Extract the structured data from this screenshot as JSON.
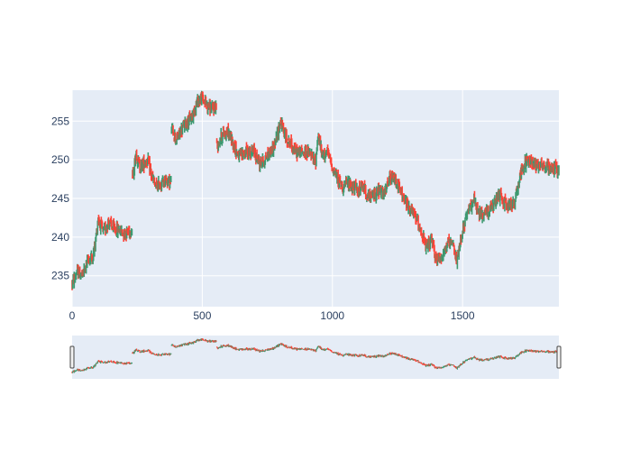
{
  "chart_data": {
    "type": "candlestick",
    "title": "",
    "xlabel": "",
    "ylabel": "",
    "xlim": [
      0,
      1870
    ],
    "ylim": [
      231,
      259
    ],
    "x_ticks": [
      0,
      500,
      1000,
      1500
    ],
    "x_tick_labels": [
      "0",
      "500",
      "1000",
      "1500"
    ],
    "y_ticks": [
      235,
      240,
      245,
      250,
      255
    ],
    "y_tick_labels": [
      "235",
      "240",
      "245",
      "250",
      "255"
    ],
    "grid": true,
    "legend": "none",
    "rangeslider": true,
    "colors": {
      "increasing": "#3D9970",
      "decreasing": "#FF4136",
      "plot_bg": "#E5ECF6",
      "grid": "#ffffff",
      "tick_text": "#2a3f5f"
    },
    "price_path": [
      [
        0,
        234.0
      ],
      [
        20,
        235.5
      ],
      [
        40,
        235.0
      ],
      [
        60,
        237.0
      ],
      [
        80,
        237.5
      ],
      [
        90,
        239.5
      ],
      [
        100,
        242.5
      ],
      [
        120,
        240.5
      ],
      [
        140,
        242.0
      ],
      [
        160,
        241.0
      ],
      [
        180,
        241.0
      ],
      [
        200,
        240.5
      ],
      [
        230,
        241.0
      ],
      [
        235,
        248.0
      ],
      [
        245,
        251.0
      ],
      [
        260,
        249.0
      ],
      [
        290,
        250.0
      ],
      [
        305,
        248.0
      ],
      [
        320,
        246.5
      ],
      [
        345,
        247.0
      ],
      [
        360,
        247.5
      ],
      [
        380,
        247.0
      ],
      [
        385,
        254.0
      ],
      [
        400,
        252.5
      ],
      [
        430,
        254.5
      ],
      [
        460,
        255.5
      ],
      [
        480,
        257.5
      ],
      [
        500,
        258.0
      ],
      [
        520,
        257.0
      ],
      [
        540,
        256.5
      ],
      [
        555,
        257.0
      ],
      [
        560,
        252.0
      ],
      [
        580,
        253.5
      ],
      [
        600,
        253.5
      ],
      [
        620,
        252.0
      ],
      [
        640,
        250.5
      ],
      [
        670,
        251.0
      ],
      [
        700,
        251.0
      ],
      [
        720,
        249.5
      ],
      [
        740,
        250.0
      ],
      [
        760,
        251.0
      ],
      [
        780,
        252.0
      ],
      [
        800,
        255.0
      ],
      [
        820,
        253.0
      ],
      [
        840,
        252.0
      ],
      [
        860,
        251.0
      ],
      [
        880,
        251.0
      ],
      [
        900,
        251.0
      ],
      [
        920,
        250.5
      ],
      [
        935,
        249.5
      ],
      [
        945,
        253.5
      ],
      [
        960,
        250.5
      ],
      [
        980,
        251.0
      ],
      [
        1000,
        249.0
      ],
      [
        1020,
        247.5
      ],
      [
        1040,
        246.5
      ],
      [
        1060,
        247.0
      ],
      [
        1080,
        246.5
      ],
      [
        1100,
        246.0
      ],
      [
        1120,
        246.5
      ],
      [
        1140,
        245.0
      ],
      [
        1160,
        245.5
      ],
      [
        1180,
        246.0
      ],
      [
        1200,
        245.5
      ],
      [
        1220,
        247.5
      ],
      [
        1240,
        247.5
      ],
      [
        1260,
        246.0
      ],
      [
        1280,
        244.5
      ],
      [
        1300,
        243.5
      ],
      [
        1320,
        242.5
      ],
      [
        1340,
        241.0
      ],
      [
        1360,
        238.5
      ],
      [
        1380,
        239.5
      ],
      [
        1400,
        237.0
      ],
      [
        1420,
        237.5
      ],
      [
        1440,
        239.0
      ],
      [
        1460,
        239.0
      ],
      [
        1480,
        237.0
      ],
      [
        1500,
        241.0
      ],
      [
        1520,
        243.0
      ],
      [
        1540,
        245.0
      ],
      [
        1560,
        243.0
      ],
      [
        1580,
        243.0
      ],
      [
        1600,
        243.5
      ],
      [
        1620,
        244.0
      ],
      [
        1640,
        245.5
      ],
      [
        1660,
        244.5
      ],
      [
        1680,
        244.0
      ],
      [
        1700,
        244.5
      ],
      [
        1720,
        248.0
      ],
      [
        1740,
        249.5
      ],
      [
        1760,
        250.0
      ],
      [
        1780,
        249.5
      ],
      [
        1800,
        249.5
      ],
      [
        1820,
        249.0
      ],
      [
        1840,
        249.0
      ],
      [
        1860,
        249.0
      ],
      [
        1870,
        248.5
      ]
    ]
  }
}
